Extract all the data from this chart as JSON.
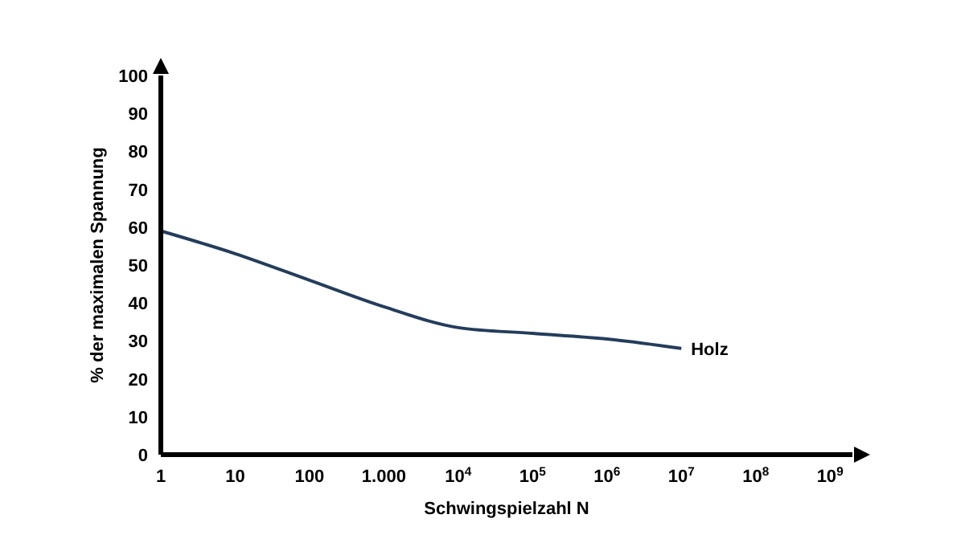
{
  "chart_data": {
    "type": "line",
    "xlabel": "Schwingspielzahl N",
    "ylabel": "% der maximalen Spannung",
    "log": "x",
    "x": [
      1,
      10,
      100,
      1000,
      10000,
      100000,
      1000000,
      10000000
    ],
    "series": [
      {
        "name": "Holz",
        "color": "#243d5c",
        "values": [
          59,
          53,
          46,
          39,
          33.5,
          32,
          30.5,
          28
        ]
      }
    ],
    "xlim": [
      1,
      2000000000
    ],
    "xticks": [
      1,
      10,
      100,
      {
        "value": 1000,
        "label": "1.000"
      },
      {
        "value": 10000,
        "label": "10$^{4}$"
      },
      {
        "value": 100000,
        "label": "10$^{5}$"
      },
      {
        "value": 1000000,
        "label": "10$^{6}$"
      },
      {
        "value": 10000000,
        "label": "10$^{7}$"
      },
      {
        "value": 100000000,
        "label": "10$^{8}$"
      },
      {
        "value": 1000000000,
        "label": "10$^{9}$"
      }
    ],
    "ylim": [
      0,
      100
    ],
    "yticks": [
      0,
      10,
      20,
      30,
      40,
      50,
      60,
      70,
      80,
      90,
      100
    ],
    "grid": false,
    "marker": "none",
    "line_style": "solid"
  }
}
